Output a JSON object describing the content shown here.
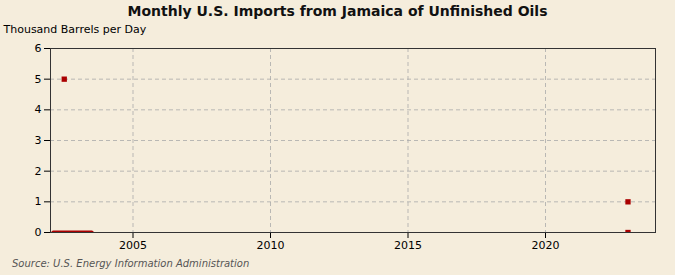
{
  "chart_data": {
    "type": "scatter",
    "title": "Monthly U.S. Imports from Jamaica of Unfinished Oils",
    "ylabel": "Thousand Barrels per Day",
    "source": "Source: U.S. Energy Information Administration",
    "xlim": [
      2002.0,
      2024.0
    ],
    "xticks": [
      2005,
      2010,
      2015,
      2020
    ],
    "ylim": [
      0,
      6
    ],
    "yticks": [
      0,
      1,
      2,
      3,
      4,
      5,
      6
    ],
    "grid": true,
    "series": [
      {
        "type": "line",
        "color": "#aa0000",
        "x": [
          2002.1,
          2003.5
        ],
        "values": [
          0.0,
          0.0
        ]
      },
      {
        "type": "scatter",
        "color": "#aa0000",
        "marker": "square",
        "x": [
          2002.5,
          2023.0,
          2023.0
        ],
        "values": [
          5.0,
          1.0,
          0.0
        ]
      }
    ]
  }
}
